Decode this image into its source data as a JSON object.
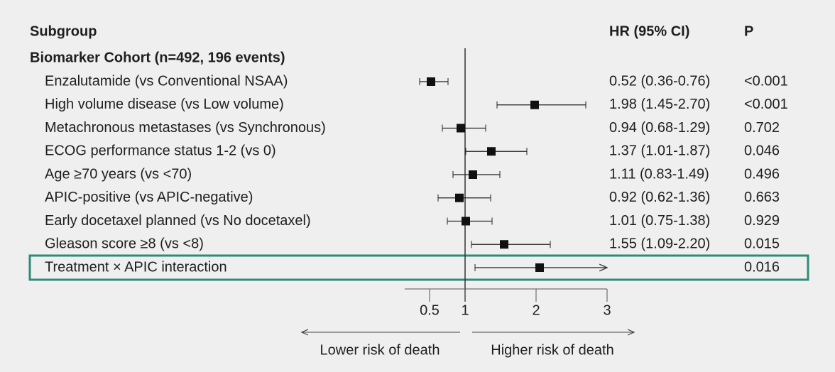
{
  "chart_data": {
    "type": "forest",
    "subgroup_header": "Subgroup",
    "hr_header": "HR (95% CI)",
    "p_header": "P",
    "group": "Biomarker Cohort (n=492, 196 events)",
    "categories": [
      "Enzalutamide (vs Conventional NSAA)",
      "High volume disease (vs Low volume)",
      "Metachronous metastases (vs Synchronous)",
      "ECOG performance status 1-2 (vs 0)",
      "Age ≥70 years (vs <70)",
      "APIC-positive (vs APIC-negative)",
      "Early docetaxel planned (vs No docetaxel)",
      "Gleason score ≥8 (vs <8)",
      "Treatment × APIC interaction"
    ],
    "values": [
      0.52,
      1.98,
      0.94,
      1.37,
      1.11,
      0.92,
      1.01,
      1.55,
      2.05
    ],
    "lower": [
      0.36,
      1.45,
      0.68,
      1.01,
      0.83,
      0.62,
      0.75,
      1.09,
      1.14
    ],
    "upper": [
      0.76,
      2.7,
      1.29,
      1.87,
      1.49,
      1.36,
      1.38,
      2.2,
      null
    ],
    "hr_labels": [
      "0.52 (0.36-0.76)",
      "1.98 (1.45-2.70)",
      "0.94 (0.68-1.29)",
      "1.37 (1.01-1.87)",
      "1.11 (0.83-1.49)",
      "0.92 (0.62-1.36)",
      "1.01 (0.75-1.38)",
      "1.55 (1.09-2.20)",
      null
    ],
    "p_labels": [
      "<0.001",
      "<0.001",
      "0.702",
      "0.046",
      "0.496",
      "0.663",
      "0.929",
      "0.015",
      "0.016"
    ],
    "xlim": [
      0.15,
      3
    ],
    "xticks": [
      0.5,
      1,
      2,
      3
    ],
    "reference_line": 1,
    "left_label": "Lower risk of death",
    "right_label": "Higher risk of death",
    "highlight_row": 8,
    "highlight_color": "#2e8b7a",
    "marker_color": "#111111"
  }
}
